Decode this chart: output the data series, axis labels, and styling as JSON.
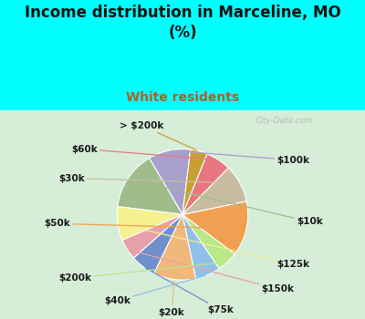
{
  "title": "Income distribution in Marceline, MO\n(%)",
  "subtitle": "White residents",
  "bg_color": "#00FFFF",
  "chart_bg_color": "#d6edd8",
  "labels": [
    "$100k",
    "$10k",
    "$125k",
    "$150k",
    "$75k",
    "$20k",
    "$40k",
    "$200k",
    "$50k",
    "$30k",
    "$60k",
    "> $200k"
  ],
  "sizes": [
    10,
    14,
    8,
    5,
    6,
    10,
    6,
    5,
    13,
    9,
    6,
    4
  ],
  "colors": [
    "#a89fcc",
    "#a0bc8a",
    "#f5f090",
    "#e8a0aa",
    "#7090cc",
    "#f0b87a",
    "#90c0e8",
    "#b8e888",
    "#f0a050",
    "#c8bca0",
    "#e87880",
    "#c8a030"
  ],
  "startangle": 83,
  "label_fontsize": 7.5,
  "title_fontsize": 12,
  "subtitle_fontsize": 10,
  "subtitle_color": "#b06020"
}
